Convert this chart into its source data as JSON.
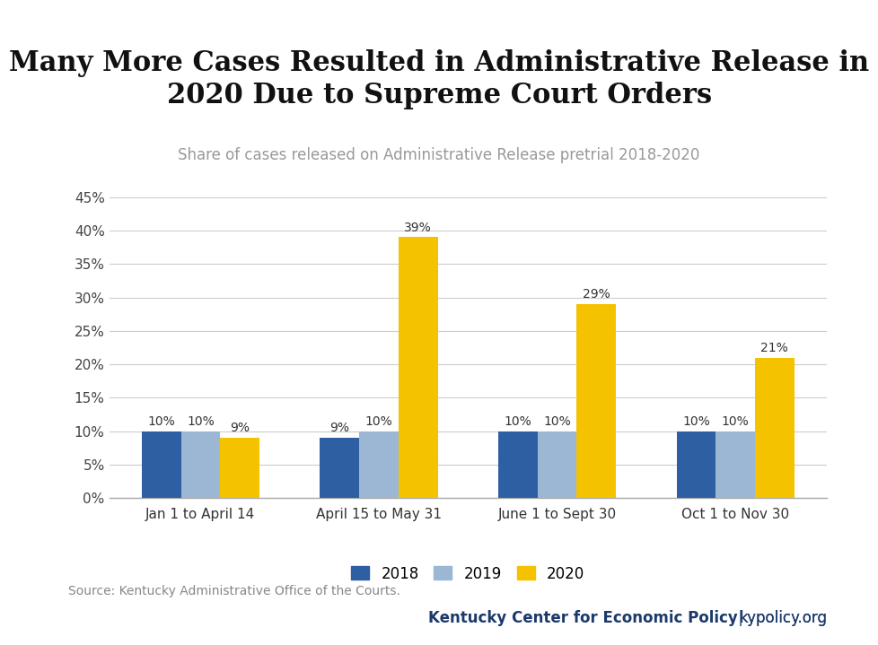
{
  "title": "Many More Cases Resulted in Administrative Release in\n2020 Due to Supreme Court Orders",
  "subtitle": "Share of cases released on Administrative Release pretrial 2018-2020",
  "categories": [
    "Jan 1 to April 14",
    "April 15 to May 31",
    "June 1 to Sept 30",
    "Oct 1 to Nov 30"
  ],
  "series": {
    "2018": [
      10,
      9,
      10,
      10
    ],
    "2019": [
      10,
      10,
      10,
      10
    ],
    "2020": [
      9,
      39,
      29,
      21
    ]
  },
  "colors": {
    "2018": "#2E5FA3",
    "2019": "#9BB7D4",
    "2020": "#F5C200"
  },
  "ylim": [
    0,
    45
  ],
  "yticks": [
    0,
    5,
    10,
    15,
    20,
    25,
    30,
    35,
    40,
    45
  ],
  "source_text": "Source: Kentucky Administrative Office of the Courts.",
  "footer_left": "Kentucky Center for Economic Policy",
  "footer_sep": " | ",
  "footer_right": "kypolicy.org",
  "top_bar_color": "#CCCCCC",
  "background_color": "#FFFFFF",
  "title_fontsize": 22,
  "subtitle_fontsize": 12,
  "bar_label_fontsize": 10,
  "legend_fontsize": 12,
  "tick_fontsize": 11,
  "footer_fontsize": 12,
  "source_fontsize": 10,
  "footer_text_color": "#1B3A6B"
}
